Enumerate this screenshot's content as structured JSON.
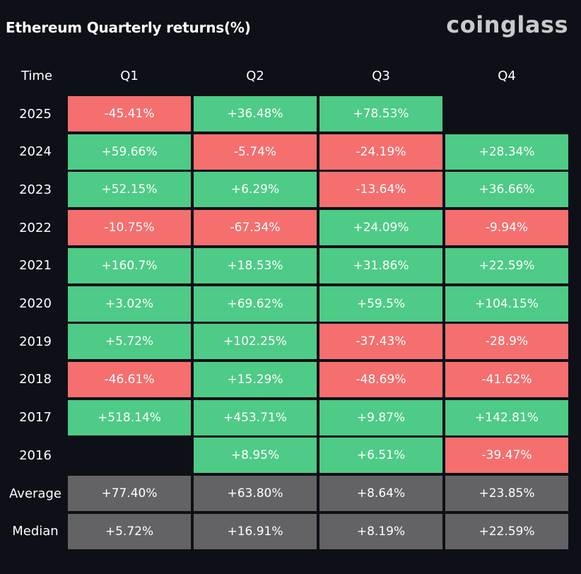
{
  "title": "Ethereum Quarterly returns(%)",
  "logo": "coinglass",
  "colors": {
    "background": "#0d1017",
    "positive": "#4ecb86",
    "negative": "#f56f6f",
    "summary": "#636366",
    "text": "#ffffff"
  },
  "chart_data": {
    "type": "table",
    "title": "Ethereum Quarterly returns(%)",
    "columns": [
      "Time",
      "Q1",
      "Q2",
      "Q3",
      "Q4"
    ],
    "rows": [
      {
        "label": "2025",
        "values": [
          "-45.41%",
          "+36.48%",
          "+78.53%",
          ""
        ]
      },
      {
        "label": "2024",
        "values": [
          "+59.66%",
          "-5.74%",
          "-24.19%",
          "+28.34%"
        ]
      },
      {
        "label": "2023",
        "values": [
          "+52.15%",
          "+6.29%",
          "-13.64%",
          "+36.66%"
        ]
      },
      {
        "label": "2022",
        "values": [
          "-10.75%",
          "-67.34%",
          "+24.09%",
          "-9.94%"
        ]
      },
      {
        "label": "2021",
        "values": [
          "+160.7%",
          "+18.53%",
          "+31.86%",
          "+22.59%"
        ]
      },
      {
        "label": "2020",
        "values": [
          "+3.02%",
          "+69.62%",
          "+59.5%",
          "+104.15%"
        ]
      },
      {
        "label": "2019",
        "values": [
          "+5.72%",
          "+102.25%",
          "-37.43%",
          "-28.9%"
        ]
      },
      {
        "label": "2018",
        "values": [
          "-46.61%",
          "+15.29%",
          "-48.69%",
          "-41.62%"
        ]
      },
      {
        "label": "2017",
        "values": [
          "+518.14%",
          "+453.71%",
          "+9.87%",
          "+142.81%"
        ]
      },
      {
        "label": "2016",
        "values": [
          "",
          "+8.95%",
          "+6.51%",
          "-39.47%"
        ]
      },
      {
        "label": "Average",
        "values": [
          "+77.40%",
          "+63.80%",
          "+8.64%",
          "+23.85%"
        ],
        "summary": true
      },
      {
        "label": "Median",
        "values": [
          "+5.72%",
          "+16.91%",
          "+8.19%",
          "+22.59%"
        ],
        "summary": true
      }
    ]
  }
}
